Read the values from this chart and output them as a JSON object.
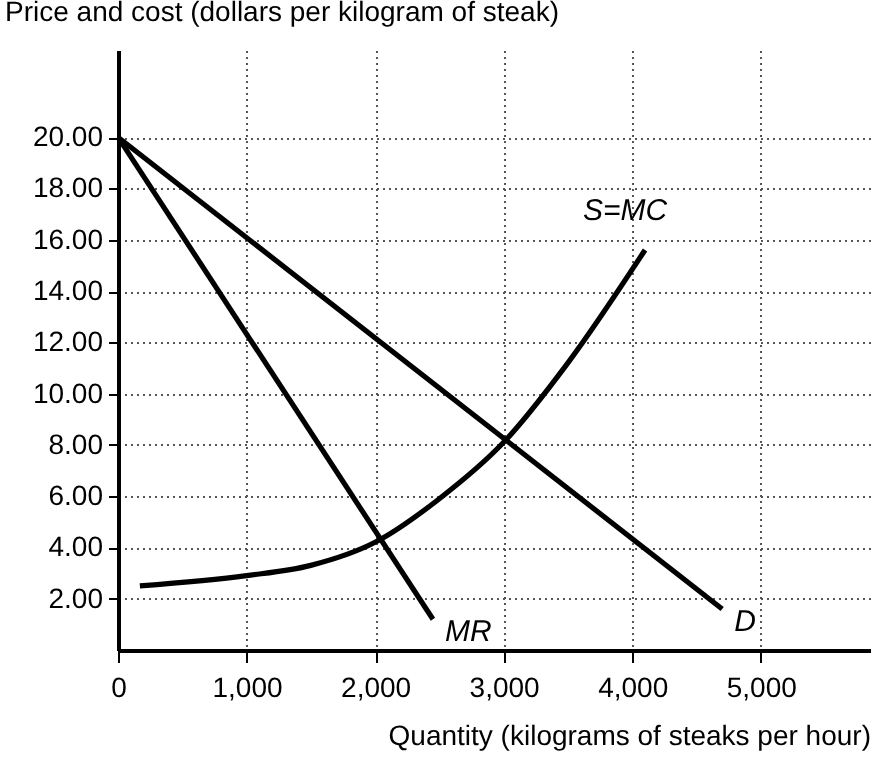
{
  "chart_data": {
    "type": "line",
    "ylabel": "Price and cost (dollars per kilogram of steak)",
    "xlabel": "Quantity (kilograms of steaks per hour)",
    "series": [
      {
        "name": "MR",
        "color": "#000000",
        "x": [
          0,
          2450
        ],
        "values": [
          20,
          1.2
        ]
      },
      {
        "name": "D",
        "color": "#000000",
        "x": [
          0,
          4700
        ],
        "values": [
          20,
          1.6
        ]
      },
      {
        "name": "S=MC",
        "color": "#000000",
        "x": [
          170,
          1000,
          1500,
          2000,
          2500,
          3000,
          3500,
          4100
        ],
        "values": [
          2.5,
          2.9,
          3.3,
          4.2,
          5.9,
          8.1,
          11.2,
          15.6
        ]
      }
    ],
    "xlim": [
      0,
      5850
    ],
    "ylim": [
      0,
      23.4
    ],
    "xticks": [
      {
        "value": 0,
        "label": "0"
      },
      {
        "value": 1000,
        "label": "1,000"
      },
      {
        "value": 2000,
        "label": "2,000"
      },
      {
        "value": 3000,
        "label": "3,000"
      },
      {
        "value": 4000,
        "label": "4,000"
      },
      {
        "value": 5000,
        "label": "5,000"
      }
    ],
    "yticks": [
      {
        "value": 2,
        "label": "2.00"
      },
      {
        "value": 4,
        "label": "4.00"
      },
      {
        "value": 6,
        "label": "6.00"
      },
      {
        "value": 8,
        "label": "8.00"
      },
      {
        "value": 10,
        "label": "10.00"
      },
      {
        "value": 12,
        "label": "12.00"
      },
      {
        "value": 14,
        "label": "14.00"
      },
      {
        "value": 16,
        "label": "16.00"
      },
      {
        "value": 18,
        "label": "18.00"
      },
      {
        "value": 20,
        "label": "20.00"
      }
    ],
    "grid": true,
    "legend": false,
    "marker": "none",
    "line_style": "solid"
  }
}
